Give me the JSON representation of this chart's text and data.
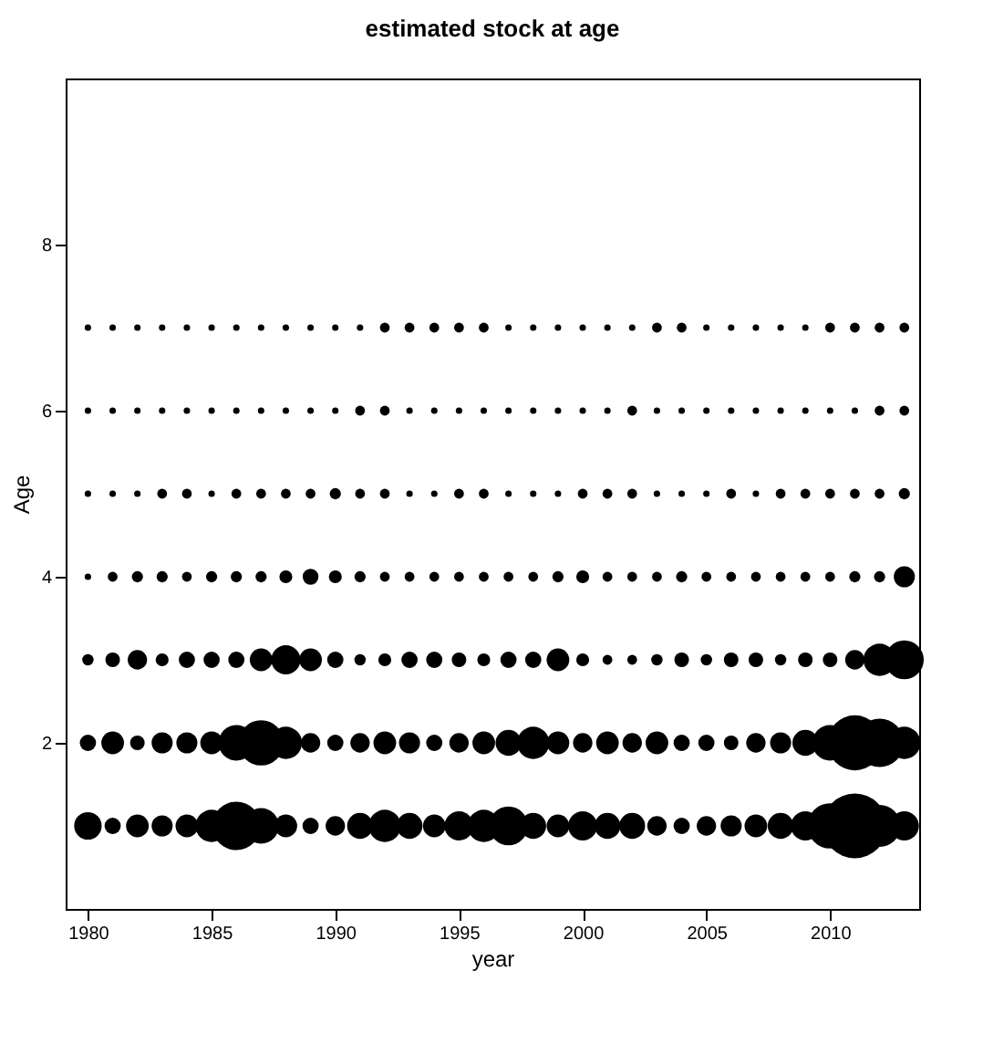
{
  "chart_data": {
    "type": "bubble",
    "title": "estimated stock at age",
    "xlabel": "year",
    "ylabel": "Age",
    "x": [
      1980,
      1981,
      1982,
      1983,
      1984,
      1985,
      1986,
      1987,
      1988,
      1989,
      1990,
      1991,
      1992,
      1993,
      1994,
      1995,
      1996,
      1997,
      1998,
      1999,
      2000,
      2001,
      2002,
      2003,
      2004,
      2005,
      2006,
      2007,
      2008,
      2009,
      2010,
      2011,
      2012,
      2013
    ],
    "xlim": [
      1979.1,
      2013.6
    ],
    "xticks": [
      1980,
      1985,
      1990,
      1995,
      2000,
      2005,
      2010
    ],
    "ylim": [
      0,
      10
    ],
    "yticks": [
      2,
      4,
      6,
      8
    ],
    "grid": false,
    "legend": false,
    "marker": "circle",
    "series": [
      {
        "color": "#000000",
        "values": [
          1,
          1,
          1,
          1,
          1,
          1,
          1,
          1,
          1,
          1,
          1,
          1,
          1,
          1,
          1,
          1,
          1,
          1,
          1,
          1,
          1,
          1,
          1,
          1,
          1,
          1,
          1,
          1,
          1,
          1,
          1,
          1,
          1,
          1
        ],
        "sizes": [
          0.181,
          0.063,
          0.123,
          0.106,
          0.123,
          0.25,
          0.563,
          0.303,
          0.123,
          0.063,
          0.09,
          0.16,
          0.25,
          0.16,
          0.123,
          0.203,
          0.25,
          0.36,
          0.16,
          0.123,
          0.203,
          0.16,
          0.16,
          0.09,
          0.063,
          0.09,
          0.106,
          0.123,
          0.16,
          0.203,
          0.49,
          1,
          0.423,
          0.203
        ]
      },
      {
        "color": "#000000",
        "values": [
          2,
          2,
          2,
          2,
          2,
          2,
          2,
          2,
          2,
          2,
          2,
          2,
          2,
          2,
          2,
          2,
          2,
          2,
          2,
          2,
          2,
          2,
          2,
          2,
          2,
          2,
          2,
          2,
          2,
          2,
          2,
          2,
          2,
          2
        ],
        "sizes": [
          0.063,
          0.123,
          0.051,
          0.106,
          0.106,
          0.123,
          0.303,
          0.49,
          0.25,
          0.09,
          0.063,
          0.09,
          0.123,
          0.106,
          0.063,
          0.09,
          0.123,
          0.16,
          0.25,
          0.123,
          0.09,
          0.123,
          0.09,
          0.123,
          0.063,
          0.063,
          0.051,
          0.09,
          0.106,
          0.16,
          0.303,
          0.723,
          0.563,
          0.25
        ]
      },
      {
        "color": "#000000",
        "values": [
          3,
          3,
          3,
          3,
          3,
          3,
          3,
          3,
          3,
          3,
          3,
          3,
          3,
          3,
          3,
          3,
          3,
          3,
          3,
          3,
          3,
          3,
          3,
          3,
          3,
          3,
          3,
          3,
          3,
          3,
          3,
          3,
          3,
          3
        ],
        "sizes": [
          0.031,
          0.051,
          0.09,
          0.04,
          0.063,
          0.063,
          0.063,
          0.123,
          0.203,
          0.123,
          0.063,
          0.031,
          0.04,
          0.063,
          0.063,
          0.051,
          0.04,
          0.063,
          0.063,
          0.123,
          0.04,
          0.023,
          0.023,
          0.031,
          0.051,
          0.031,
          0.051,
          0.051,
          0.031,
          0.051,
          0.051,
          0.09,
          0.25,
          0.36
        ]
      },
      {
        "color": "#000000",
        "values": [
          4,
          4,
          4,
          4,
          4,
          4,
          4,
          4,
          4,
          4,
          4,
          4,
          4,
          4,
          4,
          4,
          4,
          4,
          4,
          4,
          4,
          4,
          4,
          4,
          4,
          4,
          4,
          4,
          4,
          4,
          4,
          4,
          4,
          4
        ],
        "sizes": [
          0.01,
          0.023,
          0.03,
          0.03,
          0.023,
          0.03,
          0.03,
          0.03,
          0.04,
          0.06,
          0.04,
          0.03,
          0.023,
          0.023,
          0.023,
          0.023,
          0.023,
          0.023,
          0.023,
          0.03,
          0.04,
          0.023,
          0.023,
          0.023,
          0.03,
          0.023,
          0.023,
          0.023,
          0.023,
          0.023,
          0.023,
          0.03,
          0.03,
          0.106
        ]
      },
      {
        "color": "#000000",
        "values": [
          5,
          5,
          5,
          5,
          5,
          5,
          5,
          5,
          5,
          5,
          5,
          5,
          5,
          5,
          5,
          5,
          5,
          5,
          5,
          5,
          5,
          5,
          5,
          5,
          5,
          5,
          5,
          5,
          5,
          5,
          5,
          5,
          5,
          5
        ],
        "sizes": [
          0.01,
          0.01,
          0.01,
          0.023,
          0.023,
          0.01,
          0.023,
          0.023,
          0.023,
          0.023,
          0.03,
          0.023,
          0.023,
          0.01,
          0.01,
          0.023,
          0.023,
          0.01,
          0.01,
          0.01,
          0.023,
          0.023,
          0.023,
          0.01,
          0.01,
          0.01,
          0.023,
          0.01,
          0.023,
          0.023,
          0.023,
          0.023,
          0.023,
          0.03
        ]
      },
      {
        "color": "#000000",
        "values": [
          6,
          6,
          6,
          6,
          6,
          6,
          6,
          6,
          6,
          6,
          6,
          6,
          6,
          6,
          6,
          6,
          6,
          6,
          6,
          6,
          6,
          6,
          6,
          6,
          6,
          6,
          6,
          6,
          6,
          6,
          6,
          6,
          6,
          6
        ],
        "sizes": [
          0.01,
          0.01,
          0.01,
          0.01,
          0.01,
          0.01,
          0.01,
          0.01,
          0.01,
          0.01,
          0.01,
          0.023,
          0.023,
          0.01,
          0.01,
          0.01,
          0.01,
          0.01,
          0.01,
          0.01,
          0.01,
          0.01,
          0.023,
          0.01,
          0.01,
          0.01,
          0.01,
          0.01,
          0.01,
          0.01,
          0.01,
          0.01,
          0.023,
          0.023
        ]
      },
      {
        "color": "#000000",
        "values": [
          7,
          7,
          7,
          7,
          7,
          7,
          7,
          7,
          7,
          7,
          7,
          7,
          7,
          7,
          7,
          7,
          7,
          7,
          7,
          7,
          7,
          7,
          7,
          7,
          7,
          7,
          7,
          7,
          7,
          7,
          7,
          7,
          7,
          7
        ],
        "sizes": [
          0.01,
          0.01,
          0.01,
          0.01,
          0.01,
          0.01,
          0.01,
          0.01,
          0.01,
          0.01,
          0.01,
          0.01,
          0.023,
          0.023,
          0.023,
          0.023,
          0.023,
          0.01,
          0.01,
          0.01,
          0.01,
          0.01,
          0.01,
          0.023,
          0.023,
          0.01,
          0.01,
          0.01,
          0.01,
          0.01,
          0.023,
          0.023,
          0.023,
          0.023
        ]
      }
    ]
  }
}
